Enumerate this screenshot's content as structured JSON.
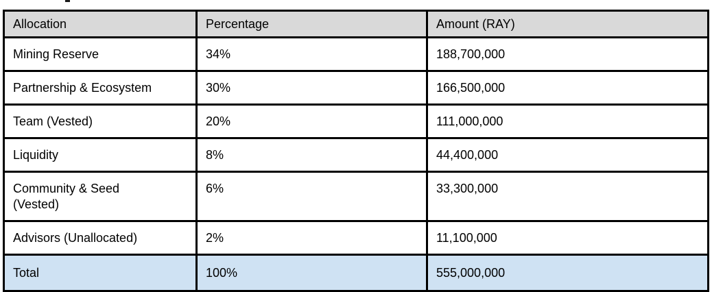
{
  "page": {
    "cropped_text_fragment": ""
  },
  "table": {
    "columns": [
      {
        "key": "allocation",
        "label": "Allocation"
      },
      {
        "key": "percentage",
        "label": "Percentage"
      },
      {
        "key": "amount",
        "label": "Amount (RAY)"
      }
    ],
    "rows": [
      {
        "allocation": "Mining Reserve",
        "percentage": "34%",
        "amount": "188,700,000"
      },
      {
        "allocation": "Partnership & Ecosystem",
        "percentage": "30%",
        "amount": "166,500,000"
      },
      {
        "allocation": "Team (Vested)",
        "percentage": "20%",
        "amount": "111,000,000"
      },
      {
        "allocation": "Liquidity",
        "percentage": "8%",
        "amount": "44,400,000"
      },
      {
        "allocation": "Community & Seed\n(Vested)",
        "percentage": "6%",
        "amount": "33,300,000"
      },
      {
        "allocation": "Advisors (Unallocated)",
        "percentage": "2%",
        "amount": "11,100,000"
      }
    ],
    "total_row": {
      "allocation": "Total",
      "percentage": "100%",
      "amount": "555,000,000"
    },
    "colors": {
      "header_bg": "#d9d9d9",
      "total_bg": "#cfe2f3",
      "border": "#000000",
      "row_bg": "#ffffff",
      "text": "#000000",
      "page_bg": "#ffffff"
    }
  }
}
